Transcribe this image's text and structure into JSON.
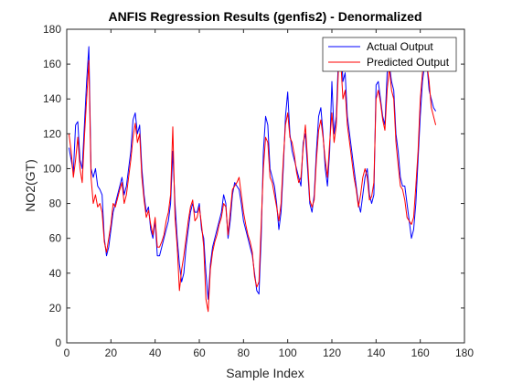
{
  "chart_data": {
    "type": "line",
    "title": "ANFIS Regression Results (genfis2) - Denormalized",
    "xlabel": "Sample Index",
    "ylabel": "NO2(GT)",
    "xlim": [
      0,
      180
    ],
    "ylim": [
      0,
      180
    ],
    "xticks": [
      "0",
      "20",
      "40",
      "60",
      "80",
      "100",
      "120",
      "140",
      "160",
      "180"
    ],
    "yticks": [
      "0",
      "20",
      "40",
      "60",
      "80",
      "100",
      "120",
      "140",
      "160",
      "180"
    ],
    "grid": false,
    "legend_position": "top-right",
    "series": [
      {
        "name": "Actual Output",
        "color": "#0000ff",
        "x": [
          1,
          2,
          3,
          4,
          5,
          6,
          7,
          8,
          9,
          10,
          11,
          12,
          13,
          14,
          15,
          16,
          17,
          18,
          19,
          20,
          21,
          22,
          23,
          24,
          25,
          26,
          27,
          28,
          29,
          30,
          31,
          32,
          33,
          34,
          35,
          36,
          37,
          38,
          39,
          40,
          41,
          42,
          43,
          44,
          45,
          46,
          47,
          48,
          49,
          50,
          51,
          52,
          53,
          54,
          55,
          56,
          57,
          58,
          59,
          60,
          61,
          62,
          63,
          64,
          65,
          66,
          67,
          68,
          69,
          70,
          71,
          72,
          73,
          74,
          75,
          76,
          77,
          78,
          79,
          80,
          81,
          82,
          83,
          84,
          85,
          86,
          87,
          88,
          89,
          90,
          91,
          92,
          93,
          94,
          95,
          96,
          97,
          98,
          99,
          100,
          101,
          102,
          103,
          104,
          105,
          106,
          107,
          108,
          109,
          110,
          111,
          112,
          113,
          114,
          115,
          116,
          117,
          118,
          119,
          120,
          121,
          122,
          123,
          124,
          125,
          126,
          127,
          128,
          129,
          130,
          131,
          132,
          133,
          134,
          135,
          136,
          137,
          138,
          139,
          140,
          141,
          142,
          143,
          144,
          145,
          146,
          147,
          148,
          149,
          150,
          151,
          152,
          153,
          154,
          155,
          156,
          157,
          158,
          159,
          160,
          161,
          162,
          163,
          164,
          165,
          166,
          167
        ],
        "values": [
          112,
          105,
          98,
          125,
          127,
          105,
          100,
          125,
          150,
          170,
          100,
          95,
          100,
          90,
          88,
          85,
          60,
          50,
          55,
          65,
          75,
          80,
          85,
          90,
          95,
          85,
          90,
          100,
          110,
          128,
          132,
          120,
          125,
          100,
          85,
          75,
          78,
          65,
          60,
          70,
          50,
          50,
          55,
          60,
          65,
          70,
          80,
          110,
          80,
          60,
          45,
          35,
          40,
          55,
          65,
          75,
          80,
          75,
          75,
          80,
          65,
          60,
          40,
          25,
          45,
          55,
          60,
          65,
          70,
          75,
          85,
          80,
          60,
          70,
          85,
          92,
          90,
          88,
          80,
          70,
          65,
          60,
          55,
          50,
          40,
          30,
          28,
          60,
          110,
          130,
          125,
          100,
          95,
          90,
          80,
          65,
          75,
          100,
          130,
          144,
          120,
          110,
          105,
          100,
          95,
          90,
          115,
          120,
          100,
          80,
          75,
          85,
          110,
          130,
          135,
          120,
          100,
          90,
          110,
          150,
          120,
          130,
          165,
          175,
          150,
          155,
          130,
          120,
          110,
          100,
          90,
          80,
          75,
          85,
          95,
          100,
          85,
          80,
          85,
          148,
          150,
          140,
          130,
          125,
          155,
          160,
          150,
          145,
          120,
          110,
          95,
          90,
          90,
          80,
          70,
          60,
          65,
          80,
          105,
          130,
          150,
          160,
          160,
          145,
          140,
          135,
          133
        ]
      },
      {
        "name": "Predicted Output",
        "color": "#ff0000",
        "x": [
          1,
          2,
          3,
          4,
          5,
          6,
          7,
          8,
          9,
          10,
          11,
          12,
          13,
          14,
          15,
          16,
          17,
          18,
          19,
          20,
          21,
          22,
          23,
          24,
          25,
          26,
          27,
          28,
          29,
          30,
          31,
          32,
          33,
          34,
          35,
          36,
          37,
          38,
          39,
          40,
          41,
          42,
          43,
          44,
          45,
          46,
          47,
          48,
          49,
          50,
          51,
          52,
          53,
          54,
          55,
          56,
          57,
          58,
          59,
          60,
          61,
          62,
          63,
          64,
          65,
          66,
          67,
          68,
          69,
          70,
          71,
          72,
          73,
          74,
          75,
          76,
          77,
          78,
          79,
          80,
          81,
          82,
          83,
          84,
          85,
          86,
          87,
          88,
          89,
          90,
          91,
          92,
          93,
          94,
          95,
          96,
          97,
          98,
          99,
          100,
          101,
          102,
          103,
          104,
          105,
          106,
          107,
          108,
          109,
          110,
          111,
          112,
          113,
          114,
          115,
          116,
          117,
          118,
          119,
          120,
          121,
          122,
          123,
          124,
          125,
          126,
          127,
          128,
          129,
          130,
          131,
          132,
          133,
          134,
          135,
          136,
          137,
          138,
          139,
          140,
          141,
          142,
          143,
          144,
          145,
          146,
          147,
          148,
          149,
          150,
          151,
          152,
          153,
          154,
          155,
          156,
          157,
          158,
          159,
          160,
          161,
          162,
          163,
          164,
          165,
          166,
          167
        ],
        "values": [
          120,
          110,
          95,
          105,
          118,
          100,
          92,
          118,
          140,
          162,
          95,
          80,
          85,
          78,
          80,
          75,
          58,
          52,
          60,
          68,
          80,
          78,
          83,
          88,
          92,
          80,
          85,
          95,
          105,
          118,
          126,
          115,
          120,
          95,
          82,
          72,
          76,
          68,
          62,
          72,
          55,
          55,
          58,
          62,
          70,
          75,
          85,
          124,
          72,
          55,
          30,
          42,
          50,
          60,
          70,
          78,
          82,
          70,
          72,
          78,
          68,
          55,
          25,
          18,
          42,
          52,
          58,
          62,
          68,
          72,
          80,
          78,
          62,
          75,
          88,
          90,
          92,
          95,
          85,
          75,
          68,
          62,
          58,
          52,
          38,
          32,
          35,
          68,
          100,
          118,
          115,
          95,
          92,
          85,
          78,
          70,
          80,
          105,
          125,
          132,
          118,
          115,
          108,
          98,
          92,
          95,
          112,
          125,
          105,
          82,
          78,
          82,
          105,
          122,
          128,
          118,
          105,
          95,
          115,
          132,
          115,
          125,
          158,
          162,
          140,
          145,
          125,
          115,
          105,
          95,
          88,
          78,
          85,
          95,
          100,
          95,
          82,
          84,
          92,
          140,
          145,
          138,
          128,
          122,
          145,
          158,
          145,
          140,
          115,
          102,
          90,
          88,
          82,
          72,
          70,
          68,
          72,
          90,
          110,
          140,
          155,
          165,
          160,
          150,
          135,
          130,
          125
        ]
      }
    ]
  }
}
